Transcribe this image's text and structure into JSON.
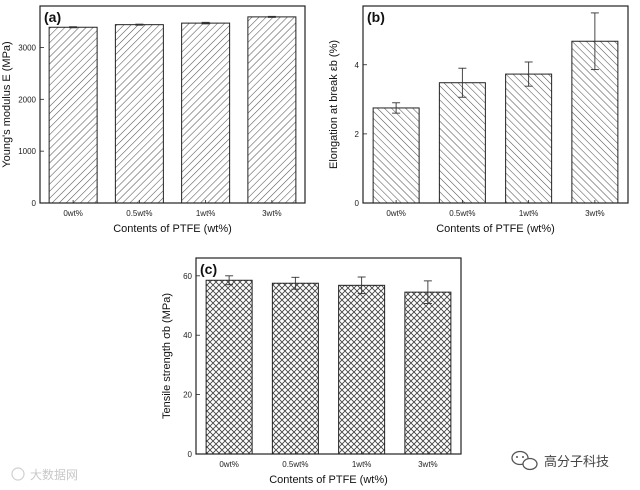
{
  "chart_data": [
    {
      "type": "bar",
      "panel": "(a)",
      "categories": [
        "0wt%",
        "0.5wt%",
        "1wt%",
        "3wt%"
      ],
      "values": [
        3390,
        3440,
        3470,
        3590
      ],
      "errors": [
        10,
        10,
        15,
        10
      ],
      "xlabel": "Contents of PTFE (wt%)",
      "ylabel": "Young's modulus E (MPa)",
      "ylim": [
        0,
        3800
      ],
      "yticks": [
        0,
        1000,
        2000,
        3000
      ],
      "hatch": "diagonal"
    },
    {
      "type": "bar",
      "panel": "(b)",
      "categories": [
        "0wt%",
        "0.5wt%",
        "1wt%",
        "3wt%"
      ],
      "values": [
        2.75,
        3.48,
        3.73,
        4.68
      ],
      "errors": [
        0.15,
        0.42,
        0.35,
        0.82
      ],
      "xlabel": "Contents of PTFE (wt%)",
      "ylabel": "Elongation at break εb (%)",
      "ylim": [
        0,
        5.7
      ],
      "yticks": [
        0,
        2,
        4
      ],
      "hatch": "diagonal"
    },
    {
      "type": "bar",
      "panel": "(c)",
      "categories": [
        "0wt%",
        "0.5wt%",
        "1wt%",
        "3wt%"
      ],
      "values": [
        58.5,
        57.5,
        56.8,
        54.5
      ],
      "errors": [
        1.5,
        2.0,
        2.8,
        3.8
      ],
      "xlabel": "Contents of PTFE (wt%)",
      "ylabel": "Tensile strength σb (MPa)",
      "ylim": [
        0,
        66
      ],
      "yticks": [
        0,
        20,
        40,
        60
      ],
      "hatch": "crosshatch"
    }
  ],
  "watermark": {
    "left": "大数据网",
    "right": "高分子科技"
  },
  "colors": {
    "bar_fill": "#ffffff",
    "hatch": "#555555",
    "axis": "#222222"
  }
}
